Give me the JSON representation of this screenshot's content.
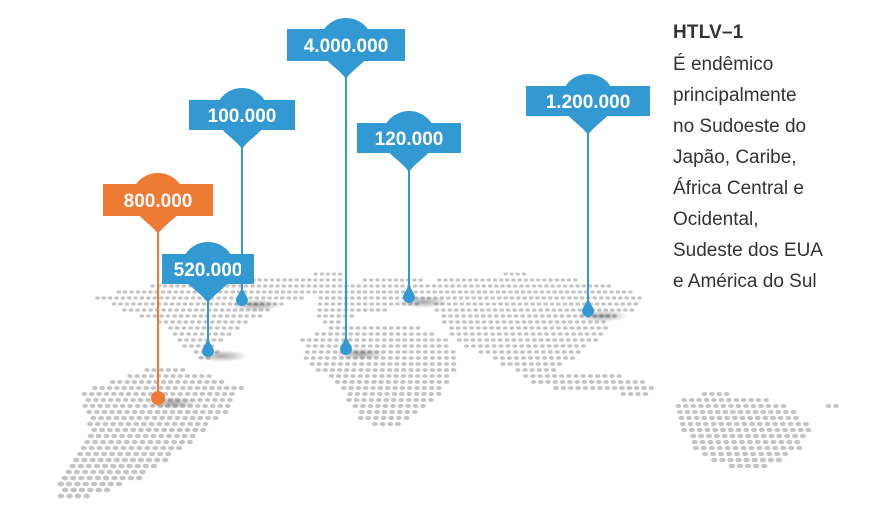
{
  "title": "HTLV–1",
  "description_lines": [
    "É endêmico",
    "principalmente",
    "no Sudoeste do",
    "Japão, Caribe,",
    "África Central e",
    "Ocidental,",
    "Sudeste dos EUA",
    "e América do Sul"
  ],
  "markers": [
    {
      "id": "marker-south-america",
      "value": "800.000",
      "color": "#EE7A33"
    },
    {
      "id": "marker-caribbean",
      "value": "520.000",
      "color": "#3399D3"
    },
    {
      "id": "marker-usa",
      "value": "100.000",
      "color": "#3399D3"
    },
    {
      "id": "marker-africa",
      "value": "4.000.000",
      "color": "#3399D3"
    },
    {
      "id": "marker-middle-east",
      "value": "120.000",
      "color": "#3399D3"
    },
    {
      "id": "marker-japan",
      "value": "1.200.000",
      "color": "#3399D3"
    }
  ],
  "map_dot_color": "#C4C4C4"
}
